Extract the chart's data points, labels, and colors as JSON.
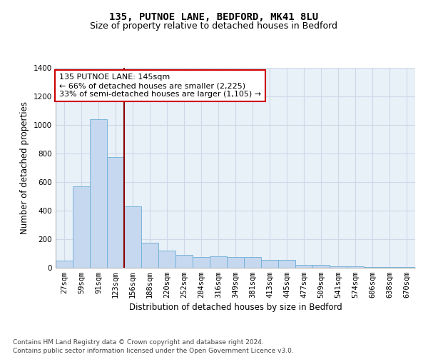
{
  "title": "135, PUTNOE LANE, BEDFORD, MK41 8LU",
  "subtitle": "Size of property relative to detached houses in Bedford",
  "xlabel": "Distribution of detached houses by size in Bedford",
  "ylabel": "Number of detached properties",
  "footnote1": "Contains HM Land Registry data © Crown copyright and database right 2024.",
  "footnote2": "Contains public sector information licensed under the Open Government Licence v3.0.",
  "annotation_line1": "135 PUTNOE LANE: 145sqm",
  "annotation_line2": "← 66% of detached houses are smaller (2,225)",
  "annotation_line3": "33% of semi-detached houses are larger (1,105) →",
  "bar_color": "#c5d8ef",
  "bar_edge_color": "#6baed6",
  "vline_color": "#8b0000",
  "annotation_box_edgecolor": "#cc0000",
  "background_color": "#e8f0f8",
  "grid_color": "#d0d8e8",
  "categories": [
    "27sqm",
    "59sqm",
    "91sqm",
    "123sqm",
    "156sqm",
    "188sqm",
    "220sqm",
    "252sqm",
    "284sqm",
    "316sqm",
    "349sqm",
    "381sqm",
    "413sqm",
    "445sqm",
    "477sqm",
    "509sqm",
    "541sqm",
    "574sqm",
    "606sqm",
    "638sqm",
    "670sqm"
  ],
  "values": [
    50,
    570,
    1040,
    775,
    430,
    175,
    120,
    90,
    75,
    80,
    75,
    75,
    55,
    55,
    20,
    20,
    10,
    10,
    5,
    5,
    5
  ],
  "ylim": [
    0,
    1400
  ],
  "yticks": [
    0,
    200,
    400,
    600,
    800,
    1000,
    1200,
    1400
  ],
  "vline_x": 3.5,
  "title_fontsize": 10,
  "subtitle_fontsize": 9,
  "axis_label_fontsize": 8.5,
  "tick_fontsize": 7.5,
  "annotation_fontsize": 8,
  "footnote_fontsize": 6.5
}
